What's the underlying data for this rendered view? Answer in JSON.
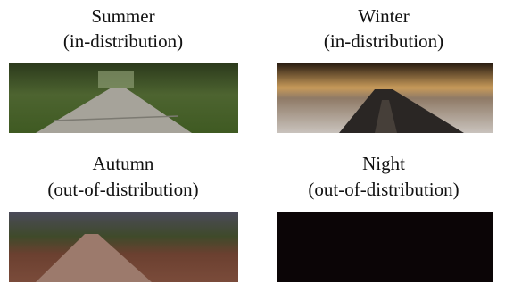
{
  "panels": [
    {
      "title": "Summer",
      "subtitle": "(in-distribution)"
    },
    {
      "title": "Winter",
      "subtitle": "(in-distribution)"
    },
    {
      "title": "Autumn",
      "subtitle": "(out-of-distribution)"
    },
    {
      "title": "Night",
      "subtitle": "(out-of-distribution)"
    }
  ]
}
